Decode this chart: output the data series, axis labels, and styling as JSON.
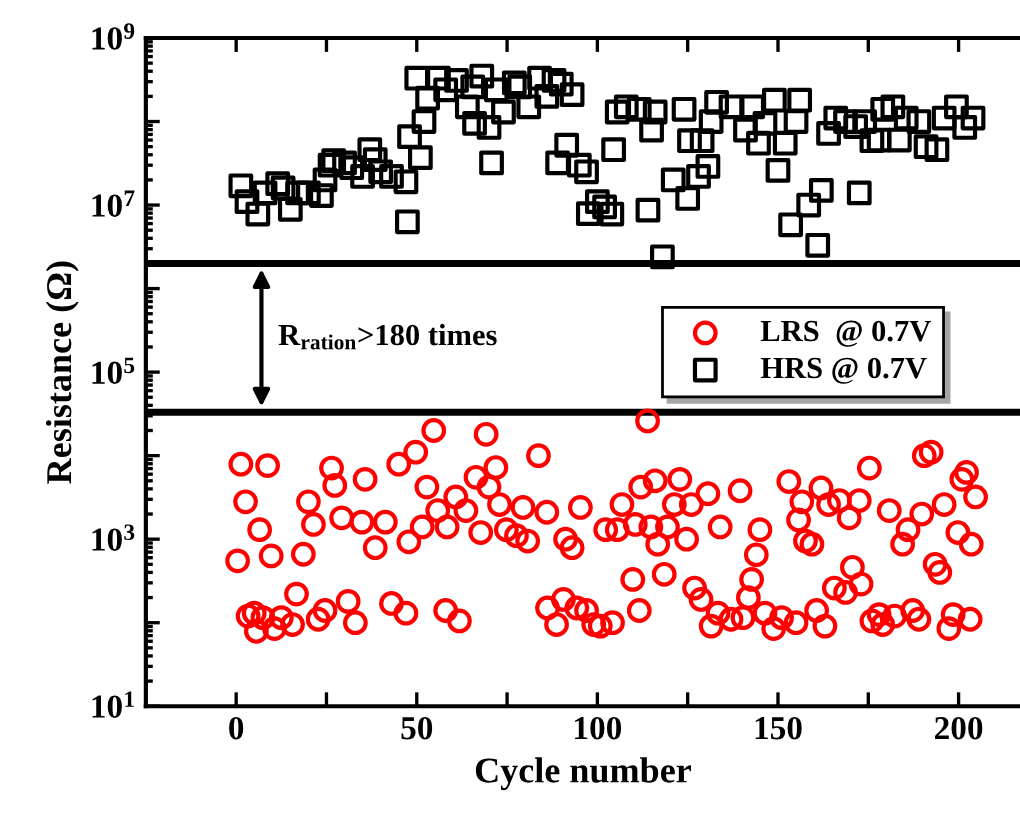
{
  "chart_data": {
    "type": "scatter",
    "xlabel": "Cycle number",
    "ylabel": "Resistance (Ω)",
    "log": "y",
    "xlim": [
      -25,
      217
    ],
    "xticks": [
      0,
      {
        "value": 25,
        "label": null
      },
      50,
      {
        "value": 75,
        "label": null
      },
      100,
      {
        "value": 125,
        "label": null
      },
      150,
      {
        "value": 175,
        "label": null
      },
      200
    ],
    "ylim": [
      10,
      1000000000
    ],
    "yticks": [
      {
        "value": 10,
        "label": "10$^{1}$"
      },
      {
        "value": 100,
        "label": null
      },
      {
        "value": 1000,
        "label": "10$^{3}$"
      },
      {
        "value": 10000,
        "label": null
      },
      {
        "value": 100000,
        "label": "10$^{5}$"
      },
      {
        "value": 1000000,
        "label": null
      },
      {
        "value": 10000000,
        "label": "10$^{7}$"
      },
      {
        "value": 100000000,
        "label": null
      },
      {
        "value": 1000000000,
        "label": "10$^{9}$"
      }
    ],
    "grid": false,
    "legend": "center right",
    "annotations": [
      {
        "text": "R$_{ration}$>180 times",
        "x": 7,
        "y": 2000000
      }
    ],
    "ref_lines": [
      {
        "axis": "y",
        "value": 2000000,
        "color": "#000000"
      },
      {
        "axis": "y",
        "value": 33000,
        "color": "#000000"
      }
    ],
    "series": [
      {
        "name": "LRS  @ 0.7V",
        "color": "#ff0000",
        "marker": "circle",
        "x": [
          0.4,
          1.3,
          2.6,
          3.3,
          5,
          5.6,
          6.5,
          7.4,
          8.7,
          9.7,
          10.6,
          12.5,
          15.6,
          16.7,
          18.6,
          20,
          21.4,
          22.7,
          24.6,
          26.4,
          27.3,
          29.2,
          31,
          33,
          34.8,
          35.7,
          38.5,
          41.3,
          43,
          45,
          47,
          47.8,
          49.7,
          51.5,
          52.8,
          54.7,
          55.8,
          58,
          58.4,
          60.8,
          61.8,
          63.6,
          66.4,
          67.7,
          69.2,
          70,
          71.9,
          72.9,
          74.8,
          77.6,
          79.4,
          80.7,
          83.7,
          86,
          86.2,
          88.7,
          90.6,
          91.2,
          93,
          94.3,
          95.3,
          97,
          99,
          100.8,
          102.3,
          104.2,
          105.5,
          106.8,
          109.8,
          110.5,
          111.6,
          112,
          113.9,
          114.8,
          116,
          116.7,
          118.5,
          119.4,
          121.3,
          122.8,
          124.7,
          126,
          126.9,
          128.7,
          130.6,
          131.5,
          133.4,
          134,
          137,
          139.5,
          140.3,
          141.8,
          142.7,
          144,
          145,
          146.4,
          148.8,
          151,
          153,
          155,
          155.7,
          156.6,
          157.6,
          159.4,
          160.7,
          161.9,
          163,
          164,
          165.6,
          167,
          168.7,
          169.7,
          170.6,
          172.5,
          173,
          175.3,
          176,
          178,
          179,
          180.8,
          182.3,
          184.5,
          186,
          187.3,
          189,
          189.8,
          190.5,
          192.4,
          193.5,
          194.8,
          196,
          197.3,
          198.5,
          199.8,
          200.9,
          202.2,
          203.2,
          203.5,
          204.7
        ],
        "values": [
          550,
          7900,
          2800,
          120,
          130,
          79,
          1300,
          115,
          7600,
          630,
          85,
          115,
          95,
          220,
          660,
          2800,
          1500,
          110,
          140,
          7100,
          4400,
          1800,
          180,
          100,
          1600,
          5200,
          790,
          1600,
          170,
          7900,
          130,
          930,
          11000,
          1400,
          4200,
          20000,
          2200,
          140,
          1400,
          3200,
          105,
          2200,
          5500,
          1200,
          18000,
          4200,
          7200,
          2600,
          1300,
          1100,
          2400,
          950,
          10000,
          2100,
          150,
          95,
          190,
          1000,
          790,
          150,
          2400,
          140,
          95,
          91,
          1300,
          100,
          1300,
          2600,
          330,
          1500,
          140,
          4200,
          26000,
          1400,
          5000,
          870,
          380,
          1400,
          2600,
          5200,
          1000,
          2600,
          260,
          190,
          3500,
          91,
          130,
          1400,
          110,
          3800,
          115,
          200,
          330,
          650,
          1300,
          130,
          85,
          115,
          4900,
          100,
          1700,
          2800,
          950,
          870,
          140,
          4100,
          91,
          2600,
          260,
          2900,
          230,
          1800,
          460,
          2900,
          290,
          7100,
          105,
          125,
          95,
          2200,
          120,
          870,
          1300,
          140,
          110,
          2000,
          10000,
          11000,
          500,
          400,
          2600,
          85,
          125,
          1200,
          5200,
          6300,
          110,
          870,
          3200
        ]
      },
      {
        "name": "HRS @ 0.7V",
        "color": "#000000",
        "marker": "square",
        "x": [
          1.3,
          3,
          6,
          8,
          11.5,
          13,
          15,
          17,
          20,
          23.6,
          24.6,
          26,
          27,
          30,
          32,
          35,
          37,
          38.5,
          40,
          43,
          47,
          47.4,
          48,
          50,
          51,
          52,
          53,
          56,
          58,
          61,
          64,
          65.5,
          66,
          68,
          70,
          70.7,
          72,
          74,
          77,
          78.5,
          81,
          84,
          86,
          88,
          89,
          90,
          91.5,
          93,
          95,
          97,
          97.5,
          100,
          102,
          104,
          104.5,
          105.5,
          108,
          111.6,
          114,
          115,
          116,
          118,
          121,
          124,
          125,
          125.5,
          128,
          129,
          130.6,
          131.5,
          133,
          137,
          141,
          143,
          144.6,
          146.4,
          149,
          150,
          152,
          153.5,
          155,
          156,
          158.5,
          161,
          162,
          164,
          166,
          168.7,
          171.5,
          172.5,
          174,
          176,
          178,
          179,
          181.8,
          183.6,
          185.5,
          189,
          191,
          194,
          196,
          199.4,
          201.7,
          204
        ],
        "values": [
          17000000,
          11000000,
          7800000,
          14000000,
          18000000,
          16000000,
          8900000,
          14000000,
          14000000,
          13000000,
          20000000,
          30000000,
          34000000,
          32000000,
          28000000,
          22000000,
          46000000,
          35000000,
          25000000,
          22000000,
          19000000,
          6300000,
          66000000,
          330000000,
          37000000,
          100000000,
          190000000,
          330000000,
          240000000,
          310000000,
          150000000,
          260000000,
          95000000,
          350000000,
          85000000,
          32000000,
          240000000,
          130000000,
          290000000,
          260000000,
          150000000,
          330000000,
          200000000,
          310000000,
          32000000,
          280000000,
          52000000,
          210000000,
          30000000,
          25000000,
          7900000,
          11000000,
          9500000,
          7800000,
          46000000,
          130000000,
          150000000,
          140000000,
          8700000,
          79000000,
          130000000,
          2400000,
          20000000,
          140000000,
          12000000,
          59000000,
          22000000,
          59000000,
          29000000,
          100000000,
          170000000,
          150000000,
          79000000,
          150000000,
          55000000,
          95000000,
          180000000,
          26000000,
          55000000,
          5800000,
          100000000,
          180000000,
          10000000,
          3300000,
          15000000,
          72000000,
          110000000,
          100000000,
          87000000,
          14000000,
          100000000,
          59000000,
          60000000,
          140000000,
          150000000,
          60000000,
          110000000,
          100000000,
          50000000,
          46000000,
          110000000,
          150000000,
          85000000,
          110000000
        ]
      }
    ]
  }
}
